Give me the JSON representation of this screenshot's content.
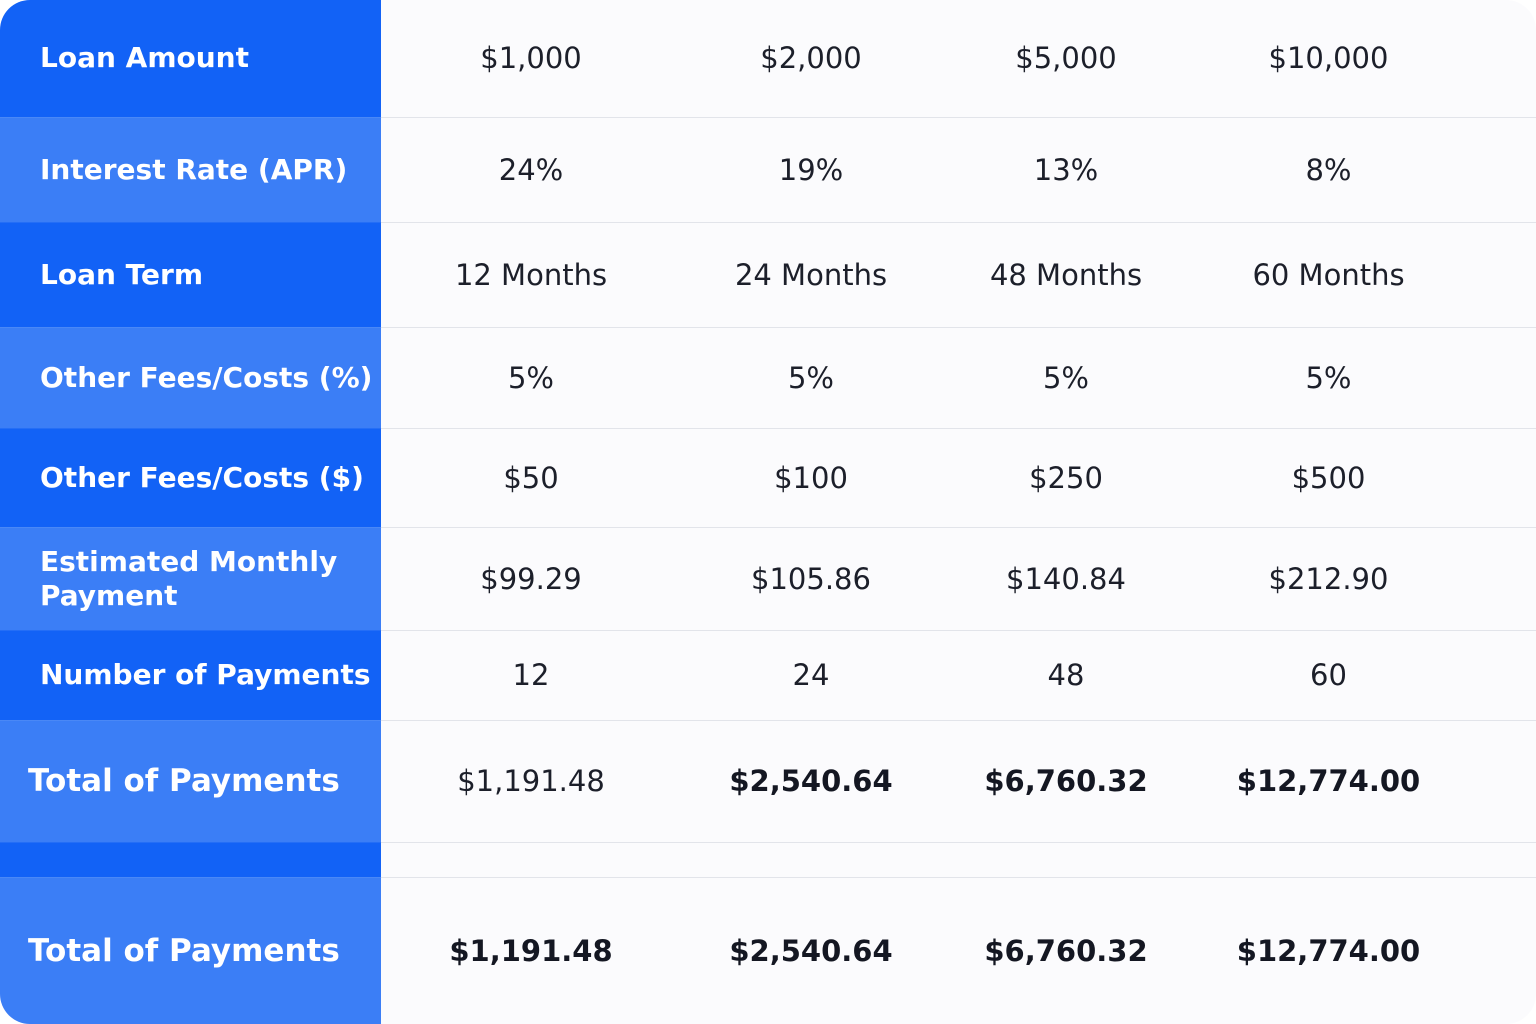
{
  "table": {
    "rows": [
      {
        "label": "Loan Amount",
        "cells": [
          "$1,000",
          "$2,000",
          "$5,000",
          "$10,000"
        ]
      },
      {
        "label": "Interest Rate (APR)",
        "cells": [
          "24%",
          "19%",
          "13%",
          "8%"
        ]
      },
      {
        "label": "Loan Term",
        "cells": [
          "12 Months",
          "24 Months",
          "48 Months",
          "60 Months"
        ]
      },
      {
        "label": "Other Fees/Costs (%)",
        "cells": [
          "5%",
          "5%",
          "5%",
          "5%"
        ]
      },
      {
        "label": "Other Fees/Costs ($)",
        "cells": [
          "$50",
          "$100",
          "$250",
          "$500"
        ]
      },
      {
        "label": "Estimated Monthly Payment",
        "cells": [
          "$99.29",
          "$105.86",
          "$140.84",
          "$212.90"
        ]
      },
      {
        "label": "Number of Payments",
        "cells": [
          "12",
          "24",
          "48",
          "60"
        ]
      },
      {
        "label": "Total of Payments",
        "cells": [
          "$1,191.48",
          "$2,540.64",
          "$6,760.32",
          "$12,774.00"
        ]
      },
      {
        "label": "Total of Payments",
        "cells": [
          "$1,191.48",
          "$2,540.64",
          "$6,760.32",
          "$12,774.00"
        ]
      }
    ]
  }
}
